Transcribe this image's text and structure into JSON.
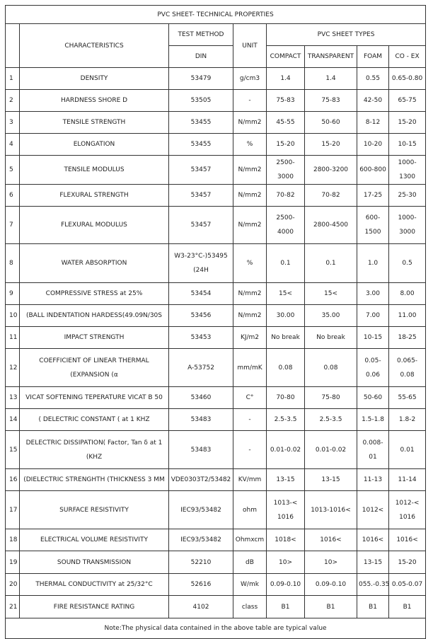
{
  "title": "PVC SHEET- TECHNICAL PROPERTIES",
  "headers": {
    "characteristics": "CHARACTERISTICS",
    "test_method": "TEST METHOD",
    "din": "DIN",
    "unit": "UNIT",
    "types": "PVC SHEET TYPES",
    "compact": "COMPACT",
    "transparent": "TRANSPARENT",
    "foam": "FOAM",
    "coex": "CO - EX"
  },
  "rows": [
    {
      "n": "1",
      "name": "DENSITY",
      "din": "53479",
      "unit": "g/cm3",
      "compact": "1.4",
      "transparent": "1.4",
      "foam": "0.55",
      "coex": "0.65-0.80"
    },
    {
      "n": "2",
      "name": "HARDNESS SHORE D",
      "din": "53505",
      "unit": "-",
      "compact": "75-83",
      "transparent": "75-83",
      "foam": "42-50",
      "coex": "65-75"
    },
    {
      "n": "3",
      "name": "TENSILE STRENGTH",
      "din": "53455",
      "unit": "N/mm2",
      "compact": "45-55",
      "transparent": "50-60",
      "foam": "8-12",
      "coex": "15-20"
    },
    {
      "n": "4",
      "name": "ELONGATION",
      "din": "53455",
      "unit": "%",
      "compact": "15-20",
      "transparent": "15-20",
      "foam": "10-20",
      "coex": "10-15"
    },
    {
      "n": "5",
      "name": "TENSILE MODULUS",
      "din": "53457",
      "unit": "N/mm2",
      "compact": "2500-3000",
      "transparent": "2800-3200",
      "foam": "600-800",
      "coex": "1000-1300"
    },
    {
      "n": "6",
      "name": "FLEXURAL STRENGTH",
      "din": "53457",
      "unit": "N/mm2",
      "compact": "70-82",
      "transparent": "70-82",
      "foam": "17-25",
      "coex": "25-30"
    },
    {
      "n": "7",
      "name": "FLEXURAL  MODULUS",
      "din": "53457",
      "unit": "N/mm2",
      "compact": "2500-4000",
      "transparent": "2800-4500",
      "foam": "600-1500",
      "coex": "1000-3000"
    },
    {
      "n": "8",
      "name": "WATER ABSORPTION",
      "din": "W3-23°C-)53495 (24H",
      "unit": "%",
      "compact": "0.1",
      "transparent": "0.1",
      "foam": "1.0",
      "coex": "0.5"
    },
    {
      "n": "9",
      "name": "COMPRESSIVE STRESS at 25%",
      "din": "53454",
      "unit": "N/mm2",
      "compact": "15<",
      "transparent": "15<",
      "foam": "3.00",
      "coex": "8.00"
    },
    {
      "n": "10",
      "name": "(BALL INDENTATION HARDESS(49.09N/30S",
      "din": "53456",
      "unit": "N/mm2",
      "compact": "30.00",
      "transparent": "35.00",
      "foam": "7.00",
      "coex": "11.00"
    },
    {
      "n": "11",
      "name": "IMPACT STRENGTH",
      "din": "53453",
      "unit": "KJ/m2",
      "compact": "No break",
      "transparent": "No break",
      "foam": "10-15",
      "coex": "18-25"
    },
    {
      "n": "12",
      "name": "COEFFICIENT OF LINEAR THERMAL (EXPANSION (α",
      "din": "A-53752",
      "unit": "mm/mK",
      "compact": "0.08",
      "transparent": "0.08",
      "foam": "0.05-0.06",
      "coex": "0.065-0.08"
    },
    {
      "n": "13",
      "name": "VICAT SOFTENING TEPERATURE  VICAT B 50",
      "din": "53460",
      "unit": "C°",
      "compact": "70-80",
      "transparent": "75-80",
      "foam": "50-60",
      "coex": "55-65"
    },
    {
      "n": "14",
      "name": "( DELECTRIC CONSTANT (  at  1 KHZ",
      "din": "53483",
      "unit": "-",
      "compact": "2.5-3.5",
      "transparent": "2.5-3.5",
      "foam": "1.5-1.8",
      "coex": "1.8-2"
    },
    {
      "n": "15",
      "name": "DELECTRIC DISSIPATION( Factor, Tan δ at 1 (KHZ",
      "din": "53483",
      "unit": "-",
      "compact": "0.01-0.02",
      "transparent": "0.01-0.02",
      "foam": "0.008-01",
      "coex": "0.01"
    },
    {
      "n": "16",
      "name": "(DIELECTRIC STRENGHTH (THICKNESS 3 MM",
      "din": "VDE0303T2/53482",
      "unit": "KV/mm",
      "compact": "13-15",
      "transparent": "13-15",
      "foam": "11-13",
      "coex": "11-14"
    },
    {
      "n": "17",
      "name": "SURFACE RESISTIVITY",
      "din": "IEC93/53482",
      "unit": "ohm",
      "compact": "1013-< 1016",
      "transparent": "1013-1016<",
      "foam": "1012<",
      "coex": "1012-< 1016"
    },
    {
      "n": "18",
      "name": "ELECTRICAL VOLUME RESISTIVITY",
      "din": "IEC93/53482",
      "unit": "Ohmxcm",
      "compact": "1018<",
      "transparent": "1016<",
      "foam": "1016<",
      "coex": "1016<"
    },
    {
      "n": "19",
      "name": "SOUND TRANSMISSION",
      "din": "52210",
      "unit": "dB",
      "compact": "10>",
      "transparent": "10>",
      "foam": "13-15",
      "coex": "15-20"
    },
    {
      "n": "20",
      "name": "THERMAL CONDUCTIVITY at 25/32°C",
      "din": "52616",
      "unit": "W/mk",
      "compact": "0.09-0.10",
      "transparent": "0.09-0.10",
      "foam": "055.-0.35",
      "coex": "0.05-0.07"
    },
    {
      "n": "21",
      "name": "FIRE RESISTANCE RATING",
      "din": "4102",
      "unit": "class",
      "compact": "B1",
      "transparent": "B1",
      "foam": "B1",
      "coex": "B1"
    }
  ],
  "note": "Note:The physical data contained in the above table are typical value"
}
